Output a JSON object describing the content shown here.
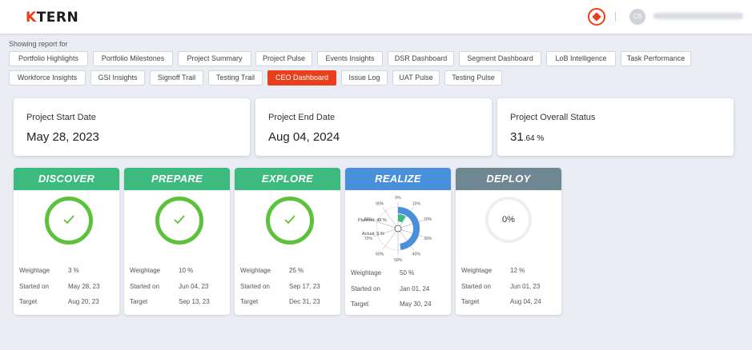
{
  "header": {
    "logo_text": "TERN",
    "logo_letter": "K",
    "brand_icon": "brand-shield-icon",
    "avatar_initials": "CS"
  },
  "showing_label": "Showing report for",
  "tabs_row1": [
    "Portfolio Highlights",
    "Portfolio Milestones",
    "Project Summary",
    "Project Pulse",
    "Events Insights",
    "DSR Dashboard",
    "Segment Dashboard",
    "LoB Intelligence",
    "Task Performance"
  ],
  "tabs_row2": [
    "Workforce Insights",
    "GSI Insights",
    "Signoff Trail",
    "Testing Trail",
    "CEO Dashboard",
    "Issue Log",
    "UAT Pulse",
    "Testing Pulse"
  ],
  "active_tab": "CEO Dashboard",
  "summary": {
    "start_label": "Project Start Date",
    "start_value": "May 28, 2023",
    "end_label": "Project End Date",
    "end_value": "Aug 04, 2024",
    "status_label": "Project Overall Status",
    "status_int": "31",
    "status_frac": ".64 %"
  },
  "labels": {
    "weightage": "Weightage",
    "started": "Started on",
    "target": "Target"
  },
  "colors": {
    "accent": "#e8401c",
    "phase_green": "#3dbb7e",
    "phase_blue": "#4a8fd9",
    "phase_slate": "#6f8792",
    "check_green": "#5cc23c"
  },
  "phases": [
    {
      "name": "DISCOVER",
      "weightage": "3 %",
      "started": "May 28, 23",
      "target": "Aug 20, 23",
      "state": "complete"
    },
    {
      "name": "PREPARE",
      "weightage": "10 %",
      "started": "Jun 04, 23",
      "target": "Sep 13, 23",
      "state": "complete"
    },
    {
      "name": "EXPLORE",
      "weightage": "25 %",
      "started": "Sep 17, 23",
      "target": "Dec 31, 23",
      "state": "complete"
    },
    {
      "name": "REALIZE",
      "weightage": "50 %",
      "started": "Jan 01, 24",
      "target": "May 30, 24",
      "state": "in-progress",
      "gauge": {
        "planned_label": "Planned: 48 %",
        "actual_label": "Actual: 9 %",
        "planned": 48,
        "actual": 9,
        "ticks": [
          "0%",
          "10%",
          "20%",
          "30%",
          "40%",
          "50%",
          "60%",
          "70%",
          "80%",
          "90%"
        ]
      }
    },
    {
      "name": "DEPLOY",
      "weightage": "12 %",
      "started": "Jun 01, 23",
      "target": "Aug 04, 24",
      "state": "not-started",
      "progress_label": "0%"
    }
  ]
}
